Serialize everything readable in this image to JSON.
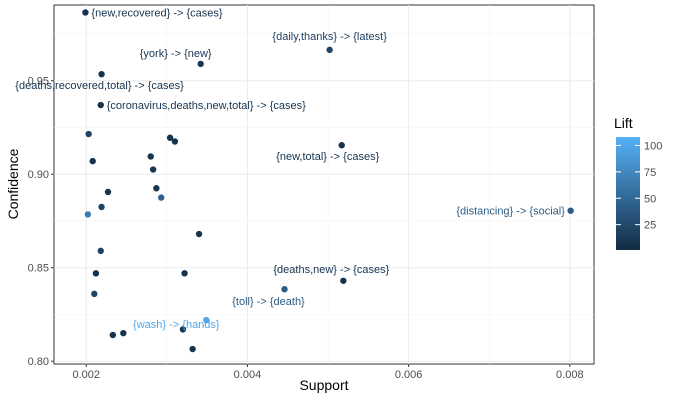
{
  "chart_data": {
    "type": "scatter",
    "xlabel": "Support",
    "ylabel": "Confidence",
    "xlim": [
      0.0016,
      0.0083
    ],
    "ylim": [
      0.7985,
      0.9905
    ],
    "xticks": [
      0.002,
      0.004,
      0.006,
      0.008
    ],
    "xtick_labels": [
      "0.002",
      "0.004",
      "0.006",
      "0.008"
    ],
    "yticks": [
      0.8,
      0.85,
      0.9,
      0.95
    ],
    "ytick_labels": [
      "0.80",
      "0.85",
      "0.90",
      "0.95"
    ],
    "grid": true,
    "legend": {
      "title": "Lift",
      "placement": "right",
      "color_scale": {
        "low": "#132b43",
        "high": "#56b1f7",
        "min": 1,
        "max": 108
      },
      "ticks": [
        25,
        50,
        75,
        100
      ],
      "tick_labels": [
        "25",
        "50",
        "75",
        "100"
      ]
    },
    "points": [
      {
        "x": 0.00199,
        "y": 0.9865,
        "lift": 8,
        "label": "{new,recovered} -> {cases}"
      },
      {
        "x": 0.00502,
        "y": 0.9665,
        "lift": 20,
        "label": "{daily,thanks} -> {latest}"
      },
      {
        "x": 0.00342,
        "y": 0.959,
        "lift": 10,
        "label": "{york} -> {new}"
      },
      {
        "x": 0.00219,
        "y": 0.9535,
        "lift": 8,
        "label": "{deaths,recovered,total} -> {cases}"
      },
      {
        "x": 0.00218,
        "y": 0.937,
        "lift": 8,
        "label": "{coronavirus,deaths,new,total} -> {cases}"
      },
      {
        "x": 0.00203,
        "y": 0.9215,
        "lift": 20,
        "label": ""
      },
      {
        "x": 0.00304,
        "y": 0.9195,
        "lift": 8,
        "label": ""
      },
      {
        "x": 0.0031,
        "y": 0.9175,
        "lift": 8,
        "label": ""
      },
      {
        "x": 0.00517,
        "y": 0.9155,
        "lift": 8,
        "label": "{new,total} -> {cases}"
      },
      {
        "x": 0.0028,
        "y": 0.9095,
        "lift": 8,
        "label": ""
      },
      {
        "x": 0.00208,
        "y": 0.907,
        "lift": 8,
        "label": ""
      },
      {
        "x": 0.00283,
        "y": 0.9025,
        "lift": 10,
        "label": ""
      },
      {
        "x": 0.00287,
        "y": 0.8925,
        "lift": 10,
        "label": ""
      },
      {
        "x": 0.00227,
        "y": 0.8905,
        "lift": 8,
        "label": ""
      },
      {
        "x": 0.00293,
        "y": 0.8875,
        "lift": 45,
        "label": ""
      },
      {
        "x": 0.00219,
        "y": 0.8825,
        "lift": 20,
        "label": ""
      },
      {
        "x": 0.00801,
        "y": 0.8805,
        "lift": 40,
        "label": "{distancing} -> {social}"
      },
      {
        "x": 0.00202,
        "y": 0.8785,
        "lift": 65,
        "label": ""
      },
      {
        "x": 0.0034,
        "y": 0.868,
        "lift": 8,
        "label": ""
      },
      {
        "x": 0.00218,
        "y": 0.859,
        "lift": 20,
        "label": ""
      },
      {
        "x": 0.00212,
        "y": 0.847,
        "lift": 8,
        "label": ""
      },
      {
        "x": 0.00322,
        "y": 0.847,
        "lift": 8,
        "label": ""
      },
      {
        "x": 0.00519,
        "y": 0.843,
        "lift": 8,
        "label": "{deaths,new} -> {cases}"
      },
      {
        "x": 0.00446,
        "y": 0.8385,
        "lift": 40,
        "label": "{toll} -> {death}"
      },
      {
        "x": 0.0021,
        "y": 0.836,
        "lift": 20,
        "label": ""
      },
      {
        "x": 0.00349,
        "y": 0.822,
        "lift": 100,
        "label": "{wash} -> {hands}"
      },
      {
        "x": 0.0032,
        "y": 0.817,
        "lift": 8,
        "label": ""
      },
      {
        "x": 0.00246,
        "y": 0.815,
        "lift": 8,
        "label": ""
      },
      {
        "x": 0.00233,
        "y": 0.814,
        "lift": 8,
        "label": ""
      },
      {
        "x": 0.00332,
        "y": 0.8065,
        "lift": 8,
        "label": ""
      }
    ]
  }
}
